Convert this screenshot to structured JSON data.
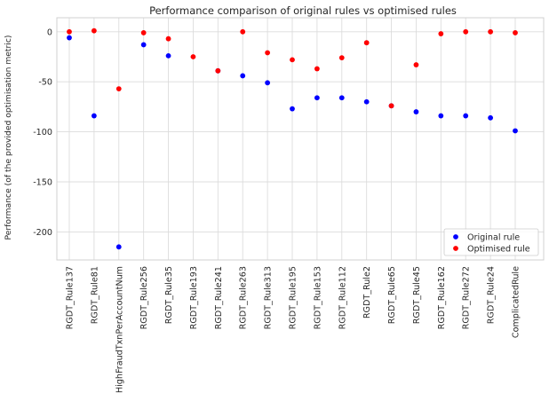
{
  "chart_data": {
    "type": "scatter",
    "title": "Performance comparison of original rules vs optimised rules",
    "xlabel": "",
    "ylabel": "Performance (of the provided optimisation metric)",
    "ylim": [
      -228,
      14
    ],
    "yticks": [
      0,
      -50,
      -100,
      -150,
      -200
    ],
    "grid": true,
    "legend_position": "lower-right",
    "categories": [
      "RGDT_Rule137",
      "RGDT_Rule81",
      "HighFraudTxnPerAccountNum",
      "RGDT_Rule256",
      "RGDT_Rule35",
      "RGDT_Rule193",
      "RGDT_Rule241",
      "RGDT_Rule263",
      "RGDT_Rule313",
      "RGDT_Rule195",
      "RGDT_Rule153",
      "RGDT_Rule112",
      "RGDT_Rule2",
      "RGDT_Rule65",
      "RGDT_Rule45",
      "RGDT_Rule162",
      "RGDT_Rule272",
      "RGDT_Rule24",
      "ComplicatedRule"
    ],
    "series": [
      {
        "name": "Original rule",
        "color": "#0000ff",
        "values": [
          -6,
          -84,
          -215,
          -13,
          -24,
          null,
          -39,
          -44,
          -51,
          -77,
          -66,
          -66,
          -70,
          -74,
          -80,
          -84,
          -84,
          -86,
          -99
        ]
      },
      {
        "name": "Optimised rule",
        "color": "#ff0000",
        "values": [
          0,
          1,
          -57,
          -1,
          -7,
          -25,
          -39,
          0,
          -21,
          -28,
          -37,
          -26,
          -11,
          -74,
          -33,
          -2,
          0,
          0,
          -1
        ]
      }
    ]
  }
}
